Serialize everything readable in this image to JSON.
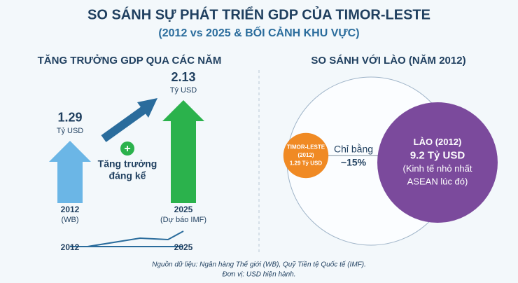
{
  "header": {
    "title": "SO SÁNH SỰ PHÁT TRIỂN GDP CỦA TIMOR-LESTE",
    "subtitle": "(2012 vs 2025 & BỐI CẢNH KHU VỰC)"
  },
  "left": {
    "title": "TĂNG TRƯỞNG GDP QUA CÁC NĂM",
    "bars": [
      {
        "value": 1.29,
        "unit": "Tỷ USD",
        "year": "2012",
        "note": "(WB)",
        "color": "#6bb6e6"
      },
      {
        "value": 2.13,
        "unit": "Tỷ USD",
        "year": "2025",
        "note": "(Dự báo IMF)",
        "color": "#2bb24c"
      }
    ],
    "growth": [
      "Tăng trưởng",
      "đáng kể"
    ],
    "timeline": [
      "2012",
      "2025"
    ]
  },
  "right": {
    "title": "SO SÁNH VỚI LÀO (NĂM 2012)",
    "small": {
      "value": 1.29,
      "lines": [
        "TIMOR-LESTE",
        "(2012)",
        "1.29 Tỷ USD"
      ],
      "color": "#f08a24"
    },
    "big": {
      "value": 9.2,
      "lines": [
        "LÀO (2012)",
        "9.2 Tỷ USD",
        "(Kinh tế nhỏ nhất",
        "ASEAN lúc đó)"
      ],
      "color": "#7b4a9c"
    },
    "compare": [
      "Chỉ bằng",
      "~15%"
    ]
  },
  "footer": [
    "Nguồn dữ liệu: Ngân hàng Thế giới (WB), Quỹ Tiền tệ Quốc tế (IMF).",
    "Đơn vị: USD hiện hành."
  ]
}
